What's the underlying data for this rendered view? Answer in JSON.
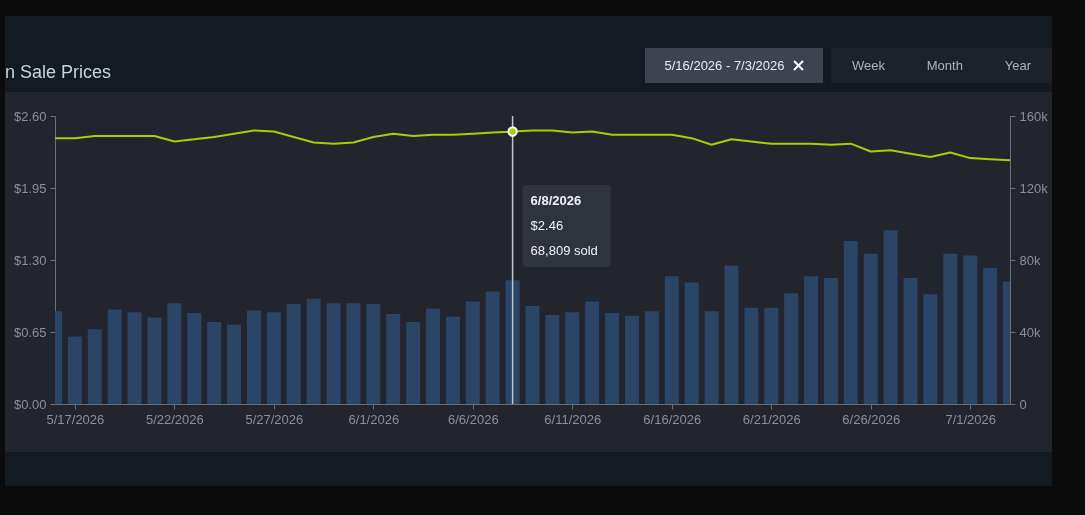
{
  "chart_data": {
    "type": "bar",
    "title": "n Sale Prices",
    "x": [
      "2026-05-16",
      "2026-05-17",
      "2026-05-18",
      "2026-05-19",
      "2026-05-20",
      "2026-05-21",
      "2026-05-22",
      "2026-05-23",
      "2026-05-24",
      "2026-05-25",
      "2026-05-26",
      "2026-05-27",
      "2026-05-28",
      "2026-05-29",
      "2026-05-30",
      "2026-05-31",
      "2026-06-01",
      "2026-06-02",
      "2026-06-03",
      "2026-06-04",
      "2026-06-05",
      "2026-06-06",
      "2026-06-07",
      "2026-06-08",
      "2026-06-09",
      "2026-06-10",
      "2026-06-11",
      "2026-06-12",
      "2026-06-13",
      "2026-06-14",
      "2026-06-15",
      "2026-06-16",
      "2026-06-17",
      "2026-06-18",
      "2026-06-19",
      "2026-06-20",
      "2026-06-21",
      "2026-06-22",
      "2026-06-23",
      "2026-06-24",
      "2026-06-25",
      "2026-06-26",
      "2026-06-27",
      "2026-06-28",
      "2026-06-29",
      "2026-06-30",
      "2026-07-01",
      "2026-07-02",
      "2026-07-03"
    ],
    "series": [
      {
        "axis": "y2",
        "color": "#2a4565",
        "values": [
          51500,
          37500,
          41500,
          52500,
          51000,
          48000,
          56000,
          50500,
          45500,
          44000,
          52000,
          51000,
          55500,
          58500,
          56000,
          56000,
          55500,
          50000,
          45500,
          53000,
          48500,
          57000,
          62500,
          68809,
          54500,
          49500,
          51000,
          57000,
          50500,
          49000,
          51500,
          71000,
          67500,
          51500,
          77000,
          53500,
          53500,
          61500,
          71000,
          70000,
          90500,
          83500,
          96500,
          70000,
          61000,
          83500,
          82500,
          75500,
          68000
        ]
      },
      {
        "type": "line",
        "color": "#a4d007",
        "values": [
          2.4,
          2.4,
          2.42,
          2.42,
          2.42,
          2.42,
          2.37,
          2.39,
          2.41,
          2.44,
          2.47,
          2.46,
          2.41,
          2.36,
          2.35,
          2.36,
          2.41,
          2.44,
          2.42,
          2.43,
          2.43,
          2.44,
          2.45,
          2.46,
          2.47,
          2.47,
          2.45,
          2.46,
          2.43,
          2.43,
          2.43,
          2.43,
          2.4,
          2.34,
          2.39,
          2.37,
          2.35,
          2.35,
          2.35,
          2.34,
          2.35,
          2.28,
          2.29,
          2.26,
          2.23,
          2.27,
          2.22,
          2.21,
          2.2
        ]
      }
    ],
    "xlim": [
      "2026-05-16",
      "2026-07-03"
    ],
    "xticks": [
      {
        "value": "2026-05-17",
        "label": "5/17/2026"
      },
      {
        "value": "2026-05-22",
        "label": "5/22/2026"
      },
      {
        "value": "2026-05-27",
        "label": "5/27/2026"
      },
      {
        "value": "2026-06-01",
        "label": "6/1/2026"
      },
      {
        "value": "2026-06-06",
        "label": "6/6/2026"
      },
      {
        "value": "2026-06-11",
        "label": "6/11/2026"
      },
      {
        "value": "2026-06-16",
        "label": "6/16/2026"
      },
      {
        "value": "2026-06-21",
        "label": "6/21/2026"
      },
      {
        "value": "2026-06-26",
        "label": "6/26/2026"
      },
      {
        "value": "2026-07-01",
        "label": "7/1/2026"
      }
    ],
    "ylim": [
      0,
      2.6
    ],
    "yticks": [
      {
        "value": 0,
        "label": "$0.00"
      },
      {
        "value": 0.65,
        "label": "$0.65"
      },
      {
        "value": 1.3,
        "label": "$1.30"
      },
      {
        "value": 1.95,
        "label": "$1.95"
      },
      {
        "value": 2.6,
        "label": "$2.60"
      }
    ],
    "y2lim": [
      0,
      160000
    ],
    "y2ticks": [
      {
        "value": 0,
        "label": "0"
      },
      {
        "value": 40000,
        "label": "40k"
      },
      {
        "value": 80000,
        "label": "80k"
      },
      {
        "value": 120000,
        "label": "120k"
      },
      {
        "value": 160000,
        "label": "160k"
      }
    ],
    "ref_lines": [
      {
        "axis": "x",
        "value": "2026-06-08",
        "color": "#c0c4c8"
      }
    ],
    "annotations": [
      "6/8/2026",
      "$2.46",
      "68,809 sold",
      "5/16/2026 - 7/3/2026",
      "Week",
      "Month",
      "Year"
    ]
  }
}
